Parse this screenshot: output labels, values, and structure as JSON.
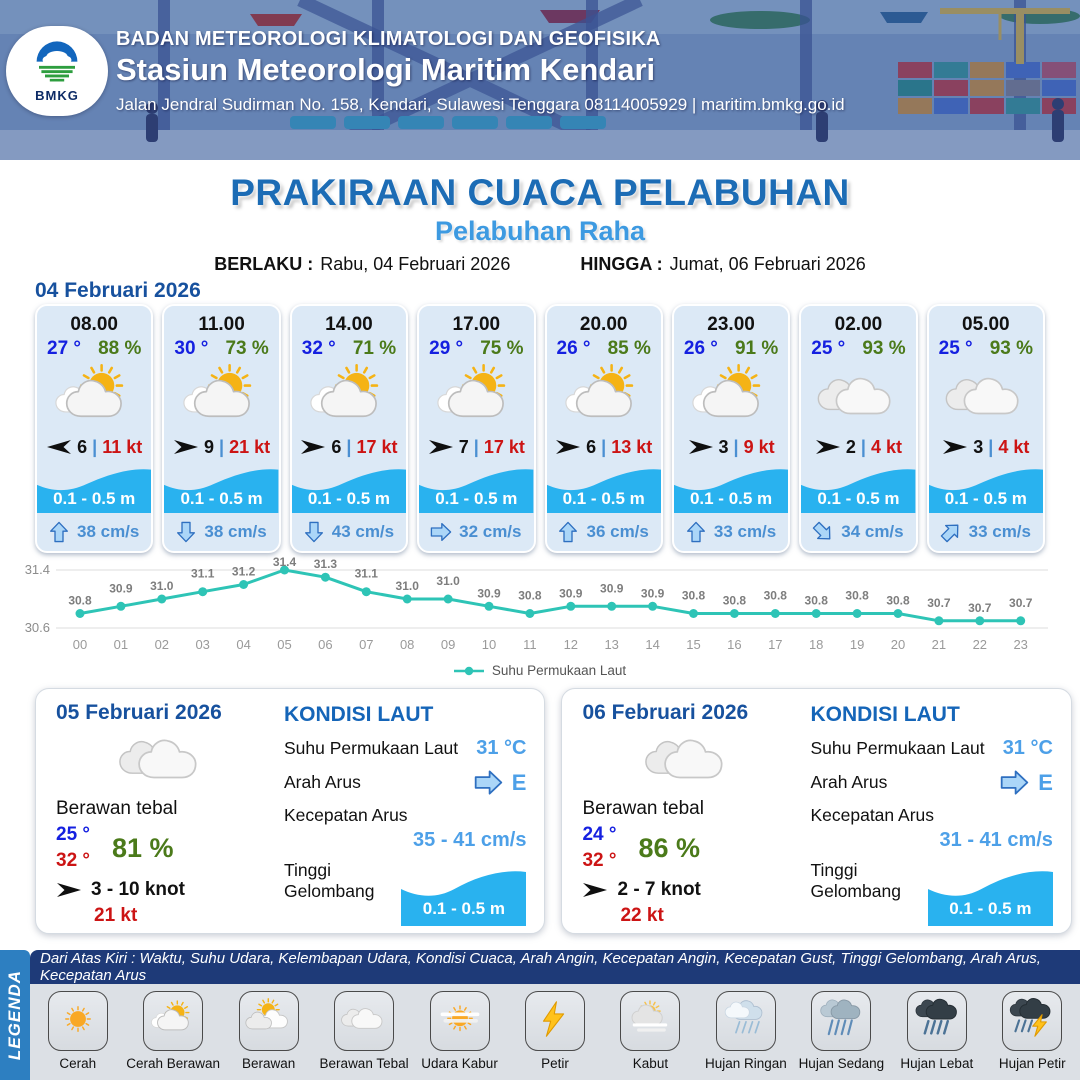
{
  "header": {
    "logo_text": "BMKG",
    "agency": "BADAN METEOROLOGI KLIMATOLOGI DAN GEOFISIKA",
    "station": "Stasiun Meteorologi Maritim Kendari",
    "address": "Jalan Jendral Sudirman No. 158, Kendari, Sulawesi Tenggara  08114005929 | maritim.bmkg.go.id"
  },
  "title": {
    "main": "PRAKIRAAN CUACA PELABUHAN",
    "port": "Pelabuhan Raha",
    "valid_label": "BERLAKU :",
    "valid_value": "Rabu, 04 Februari 2026",
    "until_label": "HINGGA :",
    "until_value": "Jumat, 06 Februari 2026"
  },
  "ui": {
    "wind_separator": "|"
  },
  "forecast_day": {
    "date": "04 Februari 2026",
    "hours": [
      {
        "time": "08.00",
        "temp": "27 °",
        "humidity": "88 %",
        "icon": "sun-cloud",
        "wind_dir": "left",
        "wind_speed": "6",
        "gust": "11 kt",
        "wave": "0.1 - 0.5 m",
        "current_dir": "up",
        "current_speed": "38 cm/s"
      },
      {
        "time": "11.00",
        "temp": "30 °",
        "humidity": "73 %",
        "icon": "sun-cloud",
        "wind_dir": "right",
        "wind_speed": "9",
        "gust": "21 kt",
        "wave": "0.1 - 0.5 m",
        "current_dir": "down",
        "current_speed": "38 cm/s"
      },
      {
        "time": "14.00",
        "temp": "32 °",
        "humidity": "71 %",
        "icon": "sun-cloud",
        "wind_dir": "right",
        "wind_speed": "6",
        "gust": "17 kt",
        "wave": "0.1 - 0.5 m",
        "current_dir": "down",
        "current_speed": "43 cm/s"
      },
      {
        "time": "17.00",
        "temp": "29 °",
        "humidity": "75 %",
        "icon": "sun-cloud",
        "wind_dir": "right",
        "wind_speed": "7",
        "gust": "17 kt",
        "wave": "0.1 - 0.5 m",
        "current_dir": "right",
        "current_speed": "32 cm/s"
      },
      {
        "time": "20.00",
        "temp": "26 °",
        "humidity": "85 %",
        "icon": "sun-cloud",
        "wind_dir": "right",
        "wind_speed": "6",
        "gust": "13 kt",
        "wave": "0.1 - 0.5 m",
        "current_dir": "up",
        "current_speed": "36 cm/s"
      },
      {
        "time": "23.00",
        "temp": "26 °",
        "humidity": "91 %",
        "icon": "sun-cloud",
        "wind_dir": "right",
        "wind_speed": "3",
        "gust": "9 kt",
        "wave": "0.1 - 0.5 m",
        "current_dir": "up",
        "current_speed": "33 cm/s"
      },
      {
        "time": "02.00",
        "temp": "25 °",
        "humidity": "93 %",
        "icon": "cloud",
        "wind_dir": "right",
        "wind_speed": "2",
        "gust": "4 kt",
        "wave": "0.1 - 0.5 m",
        "current_dir": "down-right",
        "current_speed": "34 cm/s"
      },
      {
        "time": "05.00",
        "temp": "25 °",
        "humidity": "93 %",
        "icon": "cloud",
        "wind_dir": "right",
        "wind_speed": "3",
        "gust": "4 kt",
        "wave": "0.1 - 0.5 m",
        "current_dir": "up-right",
        "current_speed": "33 cm/s"
      }
    ]
  },
  "chart_data": {
    "type": "line",
    "x": [
      "00",
      "01",
      "02",
      "03",
      "04",
      "05",
      "06",
      "07",
      "08",
      "09",
      "10",
      "11",
      "12",
      "13",
      "14",
      "15",
      "16",
      "17",
      "18",
      "19",
      "20",
      "21",
      "22",
      "23"
    ],
    "values": [
      30.8,
      30.9,
      31.0,
      31.1,
      31.2,
      31.4,
      31.3,
      31.1,
      31.0,
      31.0,
      30.9,
      30.8,
      30.9,
      30.9,
      30.9,
      30.8,
      30.8,
      30.8,
      30.8,
      30.8,
      30.8,
      30.7,
      30.7,
      30.7
    ],
    "legend": "Suhu Permukaan Laut",
    "ylim": [
      30.6,
      31.4
    ],
    "line_color": "#2ec4b6",
    "grid": true,
    "legend_position": "bottom"
  },
  "sea_days": [
    {
      "date": "05 Februari 2026",
      "icon": "cloud",
      "weather_label": "Berawan tebal",
      "temp_min": "25 °",
      "temp_max": "32 °",
      "humidity": "81 %",
      "wind_dir": "right",
      "wind_range": "3  - 10 knot",
      "gust": "21 kt",
      "sea": {
        "heading": "KONDISI LAUT",
        "sst_label": "Suhu Permukaan Laut",
        "sst_value": "31 °C",
        "current_dir_label": "Arah Arus",
        "current_dir": "right",
        "current_dir_value": "E",
        "current_speed_label": "Kecepatan Arus",
        "current_speed_value": "35 - 41 cm/s",
        "wave_label": "Tinggi Gelombang",
        "wave_value": "0.1 - 0.5 m"
      }
    },
    {
      "date": "06 Februari 2026",
      "icon": "cloud",
      "weather_label": "Berawan tebal",
      "temp_min": "24 °",
      "temp_max": "32 °",
      "humidity": "86 %",
      "wind_dir": "right",
      "wind_range": "2  - 7 knot",
      "gust": "22 kt",
      "sea": {
        "heading": "KONDISI LAUT",
        "sst_label": "Suhu Permukaan Laut",
        "sst_value": "31 °C",
        "current_dir_label": "Arah Arus",
        "current_dir": "right",
        "current_dir_value": "E",
        "current_speed_label": "Kecepatan Arus",
        "current_speed_value": "31 - 41 cm/s",
        "wave_label": "Tinggi Gelombang",
        "wave_value": "0.1 - 0.5 m"
      }
    }
  ],
  "legend": {
    "title": "LEGENDA",
    "description": "Dari Atas Kiri : Waktu, Suhu Udara, Kelembapan Udara, Kondisi Cuaca, Arah Angin, Kecepatan Angin, Kecepatan Gust, Tinggi Gelombang, Arah Arus, Kecepatan Arus",
    "items": [
      {
        "label": "Cerah",
        "icon": "sun"
      },
      {
        "label": "Cerah Berawan",
        "icon": "sun-cloud"
      },
      {
        "label": "Berawan",
        "icon": "cloud-sun"
      },
      {
        "label": "Berawan Tebal",
        "icon": "cloud"
      },
      {
        "label": "Udara Kabur",
        "icon": "haze"
      },
      {
        "label": "Petir",
        "icon": "lightning"
      },
      {
        "label": "Kabut",
        "icon": "fog"
      },
      {
        "label": "Hujan Ringan",
        "icon": "light-rain"
      },
      {
        "label": "Hujan Sedang",
        "icon": "moderate-rain"
      },
      {
        "label": "Hujan Lebat",
        "icon": "heavy-rain"
      },
      {
        "label": "Hujan Petir",
        "icon": "thunderstorm"
      }
    ]
  },
  "colors": {
    "title_blue": "#1c6cb5",
    "port_name_blue": "#3d9ae1",
    "date_blue": "#17519e",
    "temp_blue": "#1520e0",
    "temp_max_red": "#cc1414",
    "humidity_green": "#4b7a1a",
    "gust_red": "#cc1414",
    "wave_band_blue": "#29b2ef",
    "current_text_blue": "#4a8fd2",
    "chart_line_teal": "#2ec4b6",
    "legend_bar_blue": "#2d7fc1",
    "legend_strip_navy": "#1e3a78"
  }
}
